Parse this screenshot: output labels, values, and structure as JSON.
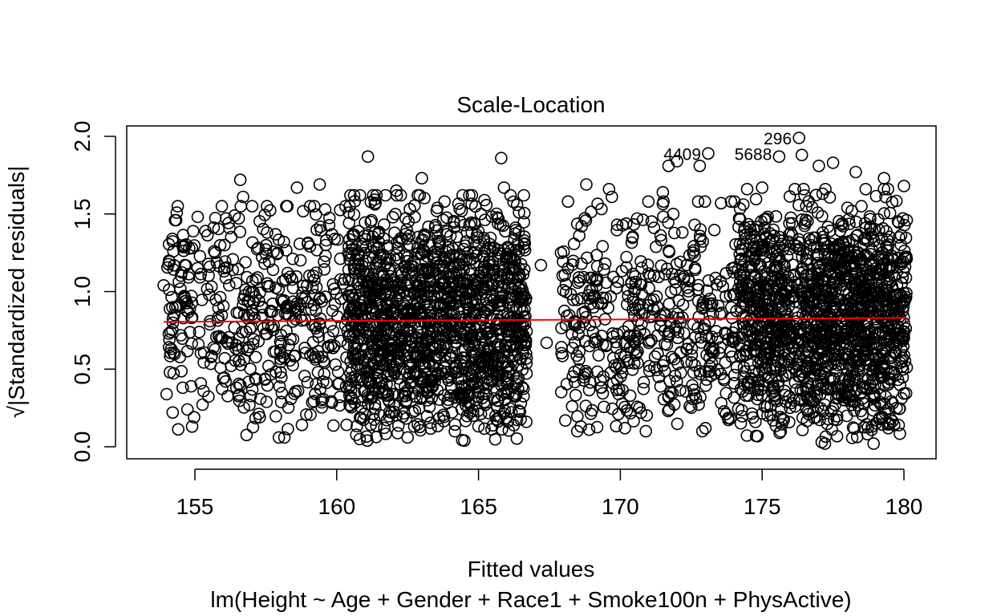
{
  "chart_data": {
    "type": "scatter",
    "title": "Scale-Location",
    "xlabel": "Fitted values",
    "ylabel": "√|Standardized residuals|",
    "subtitle": "lm(Height ~ Age + Gender + Race1 + Smoke100n + PhysActive)",
    "xlim": [
      153.6,
      180.9
    ],
    "ylim": [
      0.0,
      2.05
    ],
    "x_ticks": [
      155,
      160,
      165,
      170,
      175,
      180
    ],
    "y_ticks": [
      0.0,
      0.5,
      1.0,
      1.5,
      2.0
    ],
    "x_tick_labels": [
      "155",
      "160",
      "165",
      "170",
      "175",
      "180"
    ],
    "y_tick_labels": [
      "0.0",
      "0.5",
      "1.0",
      "1.5",
      "2.0"
    ],
    "grid": false,
    "point_style": "open-circle",
    "point_color": "#000000",
    "smooth_color": "#ff0000",
    "smooth_line": {
      "x": [
        153.9,
        180.1
      ],
      "y": [
        0.805,
        0.83
      ]
    },
    "annotations": [
      {
        "label": "296",
        "x": 176.3,
        "y": 1.99
      },
      {
        "label": "4409",
        "x": 173.1,
        "y": 1.89
      },
      {
        "label": "5688",
        "x": 175.6,
        "y": 1.89
      }
    ],
    "points": [
      [
        176.3,
        1.99
      ],
      [
        173.1,
        1.89
      ],
      [
        175.6,
        1.87
      ],
      [
        176.4,
        1.88
      ],
      [
        165.8,
        1.86
      ],
      [
        161.1,
        1.87
      ],
      [
        172.0,
        1.84
      ],
      [
        171.7,
        1.81
      ],
      [
        172.8,
        1.81
      ],
      [
        177.0,
        1.81
      ],
      [
        177.5,
        1.83
      ],
      [
        178.3,
        1.77
      ],
      [
        156.6,
        1.72
      ],
      [
        163.0,
        1.73
      ],
      [
        179.3,
        1.73
      ],
      [
        168.8,
        1.69
      ],
      [
        159.4,
        1.69
      ],
      [
        169.6,
        1.66
      ],
      [
        175.0,
        1.67
      ],
      [
        171.5,
        1.64
      ],
      [
        158.6,
        1.67
      ],
      [
        162.1,
        1.65
      ],
      [
        165.9,
        1.67
      ],
      [
        180.0,
        1.68
      ],
      [
        156.7,
        1.61
      ],
      [
        169.7,
        1.61
      ],
      [
        163.8,
        1.58
      ],
      [
        178.5,
        1.55
      ],
      [
        154.3,
        1.46
      ],
      [
        156.4,
        1.49
      ],
      [
        180.1,
        1.46
      ],
      [
        167.2,
        1.17
      ],
      [
        167.4,
        0.67
      ],
      [
        168.3,
        0.26
      ],
      [
        168.9,
        0.11
      ],
      [
        154.9,
        0.13
      ],
      [
        177.1,
        0.03
      ],
      [
        164.5,
        0.04
      ],
      [
        162.5,
        0.06
      ],
      [
        173.0,
        0.12
      ],
      [
        154.1,
        0.69
      ],
      [
        153.9,
        1.04
      ]
    ],
    "cloud_clusters": [
      {
        "x_min": 154.0,
        "x_max": 160.6,
        "y_min": 0.06,
        "y_max": 1.55,
        "count": 480
      },
      {
        "x_min": 160.4,
        "x_max": 166.7,
        "y_min": 0.04,
        "y_max": 1.62,
        "count": 1500
      },
      {
        "x_min": 167.9,
        "x_max": 174.2,
        "y_min": 0.1,
        "y_max": 1.58,
        "count": 480
      },
      {
        "x_min": 174.2,
        "x_max": 180.1,
        "y_min": 0.02,
        "y_max": 1.66,
        "count": 1500
      }
    ]
  }
}
